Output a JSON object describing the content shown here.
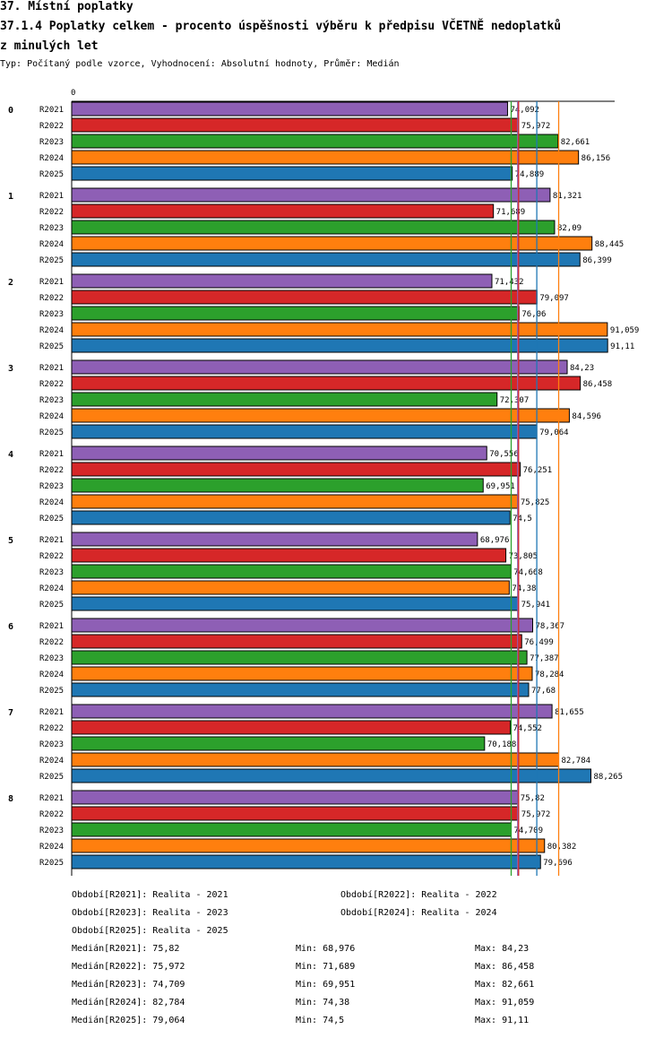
{
  "header": {
    "title_line1": "37. Místní poplatky",
    "title_line2": "37.1.4 Poplatky celkem - procento úspěšnosti výběru k předpisu VČETNĚ nedoplatků",
    "title_line3": "z minulých let",
    "subtitle": "Typ: Počítaný podle vzorce, Vyhodnocení: Absolutní hodnoty, Průměr: Medián"
  },
  "chart_data": {
    "type": "bar",
    "orientation": "horizontal",
    "axis_zero_label": "0",
    "groups": [
      "0",
      "1",
      "2",
      "3",
      "4",
      "5",
      "6",
      "7",
      "8"
    ],
    "series": [
      {
        "name": "R2021",
        "color": "#8e5fb5",
        "values": [
          74.092,
          81.321,
          71.432,
          84.23,
          70.556,
          68.976,
          78.367,
          81.655,
          75.82
        ],
        "labels": [
          "74,092",
          "81,321",
          "71,432",
          "84,23",
          "70,556",
          "68,976",
          "78,367",
          "81,655",
          "75,82"
        ]
      },
      {
        "name": "R2022",
        "color": "#d62728",
        "values": [
          75.972,
          71.689,
          79.097,
          86.458,
          76.251,
          73.805,
          76.499,
          74.552,
          75.972
        ],
        "labels": [
          "75,972",
          "71,689",
          "79,097",
          "86,458",
          "76,251",
          "73,805",
          "76,499",
          "74,552",
          "75,972"
        ]
      },
      {
        "name": "R2023",
        "color": "#2ca02c",
        "values": [
          82.661,
          82.09,
          76.06,
          72.307,
          69.951,
          74.668,
          77.387,
          70.188,
          74.709
        ],
        "labels": [
          "82,661",
          "82,09",
          "76,06",
          "72,307",
          "69,951",
          "74,668",
          "77,387",
          "70,188",
          "74,709"
        ]
      },
      {
        "name": "R2024",
        "color": "#ff7f0e",
        "values": [
          86.156,
          88.445,
          91.059,
          84.596,
          75.825,
          74.38,
          78.284,
          82.784,
          80.382
        ],
        "labels": [
          "86,156",
          "88,445",
          "91,059",
          "84,596",
          "75,825",
          "74,38",
          "78,284",
          "82,784",
          "80,382"
        ]
      },
      {
        "name": "R2025",
        "color": "#1f77b4",
        "values": [
          74.889,
          86.399,
          91.11,
          79.064,
          74.5,
          75.941,
          77.68,
          88.265,
          79.696
        ],
        "labels": [
          "74,889",
          "86,399",
          "91,11",
          "79,064",
          "74,5",
          "75,941",
          "77,68",
          "88,265",
          "79,696"
        ]
      }
    ],
    "reference_lines": [
      {
        "series": "R2021",
        "value": 75.82,
        "color": "#8e5fb5"
      },
      {
        "series": "R2022",
        "value": 75.972,
        "color": "#d62728"
      },
      {
        "series": "R2023",
        "value": 74.709,
        "color": "#2ca02c"
      },
      {
        "series": "R2024",
        "value": 82.784,
        "color": "#ff7f0e"
      },
      {
        "series": "R2025",
        "value": 79.064,
        "color": "#1f77b4"
      }
    ],
    "xlim": [
      0,
      92.3
    ]
  },
  "legend": {
    "periods": [
      "Období[R2021]: Realita - 2021",
      "Období[R2022]: Realita - 2022",
      "Období[R2023]: Realita - 2023",
      "Období[R2024]: Realita - 2024",
      "Období[R2025]: Realita - 2025"
    ],
    "stats": [
      {
        "median": "Medián[R2021]: 75,82",
        "min": "Min: 68,976",
        "max": "Max: 84,23"
      },
      {
        "median": "Medián[R2022]: 75,972",
        "min": "Min: 71,689",
        "max": "Max: 86,458"
      },
      {
        "median": "Medián[R2023]: 74,709",
        "min": "Min: 69,951",
        "max": "Max: 82,661"
      },
      {
        "median": "Medián[R2024]: 82,784",
        "min": "Min: 74,38",
        "max": "Max: 91,059"
      },
      {
        "median": "Medián[R2025]: 79,064",
        "min": "Min: 74,5",
        "max": "Max: 91,11"
      }
    ]
  }
}
